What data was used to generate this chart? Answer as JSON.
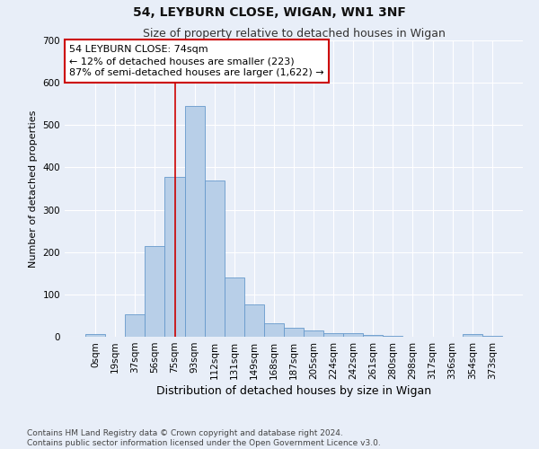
{
  "title": "54, LEYBURN CLOSE, WIGAN, WN1 3NF",
  "subtitle": "Size of property relative to detached houses in Wigan",
  "xlabel": "Distribution of detached houses by size in Wigan",
  "ylabel": "Number of detached properties",
  "categories": [
    "0sqm",
    "19sqm",
    "37sqm",
    "56sqm",
    "75sqm",
    "93sqm",
    "112sqm",
    "131sqm",
    "149sqm",
    "168sqm",
    "187sqm",
    "205sqm",
    "224sqm",
    "242sqm",
    "261sqm",
    "280sqm",
    "298sqm",
    "317sqm",
    "336sqm",
    "354sqm",
    "373sqm"
  ],
  "bar_heights": [
    7,
    0,
    52,
    215,
    378,
    545,
    370,
    140,
    77,
    32,
    21,
    15,
    9,
    9,
    5,
    3,
    0,
    0,
    0,
    6,
    3
  ],
  "bar_color": "#b8cfe8",
  "bar_edge_color": "#6699cc",
  "bar_edge_width": 0.6,
  "bg_color": "#e8eef8",
  "grid_color": "#ffffff",
  "vline_x_index": 4,
  "vline_color": "#cc0000",
  "annotation_text": "54 LEYBURN CLOSE: 74sqm\n← 12% of detached houses are smaller (223)\n87% of semi-detached houses are larger (1,622) →",
  "annotation_box_color": "#ffffff",
  "annotation_box_edge": "#cc0000",
  "ylim": [
    0,
    700
  ],
  "yticks": [
    0,
    100,
    200,
    300,
    400,
    500,
    600,
    700
  ],
  "footnote": "Contains HM Land Registry data © Crown copyright and database right 2024.\nContains public sector information licensed under the Open Government Licence v3.0.",
  "title_fontsize": 10,
  "subtitle_fontsize": 9,
  "xlabel_fontsize": 9,
  "ylabel_fontsize": 8,
  "tick_fontsize": 7.5,
  "annotation_fontsize": 8,
  "footnote_fontsize": 6.5
}
